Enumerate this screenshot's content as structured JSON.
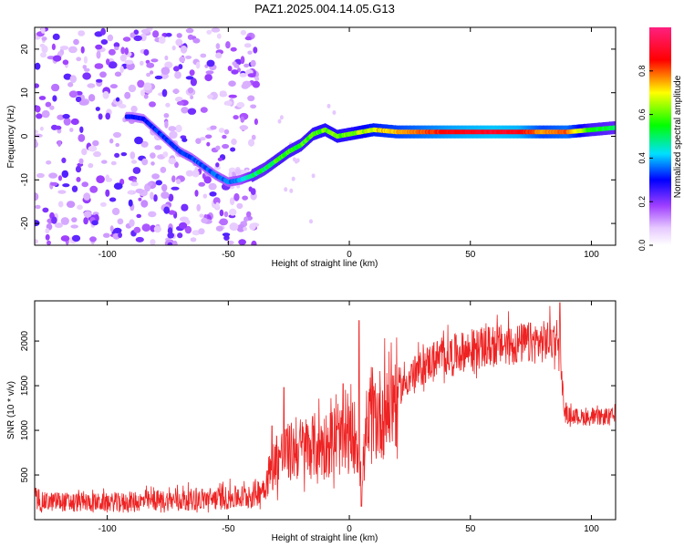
{
  "title": "PAZ1.2025.004.14.05.G13",
  "chart_data": [
    {
      "type": "heatmap",
      "xlabel": "Height of straight line (km)",
      "ylabel": "Frequency (Hz)",
      "xlim": [
        -130,
        110
      ],
      "ylim": [
        -25,
        25
      ],
      "xticks": [
        -100,
        -50,
        0,
        50,
        100
      ],
      "yticks": [
        -20,
        -10,
        0,
        10,
        20
      ],
      "colorbar": {
        "label": "Normalized spectral amplitude",
        "range": [
          0,
          1
        ],
        "ticks": [
          "0.0",
          "0.2",
          "0.4",
          "0.6",
          "0.8"
        ],
        "colors": [
          "#ffffff",
          "#e6c8ff",
          "#a040ff",
          "#0000ff",
          "#00e0ff",
          "#00ff00",
          "#ffff00",
          "#ff0000",
          "#ff2080"
        ]
      },
      "ridge": {
        "x": [
          -90,
          -85,
          -80,
          -75,
          -70,
          -65,
          -60,
          -55,
          -50,
          -45,
          -40,
          -35,
          -30,
          -25,
          -20,
          -15,
          -10,
          -5,
          0,
          5,
          10,
          20,
          30,
          40,
          50,
          60,
          70,
          80,
          90,
          100,
          110
        ],
        "y": [
          4.5,
          4.0,
          1.5,
          -1.0,
          -3.5,
          -5.0,
          -7.0,
          -9.0,
          -10.5,
          -10.0,
          -9.0,
          -7.5,
          -5.5,
          -3.5,
          -2.0,
          0.5,
          1.5,
          0.0,
          0.5,
          1.0,
          1.5,
          1.0,
          1.0,
          1.0,
          1.0,
          1.0,
          1.0,
          1.0,
          1.0,
          1.5,
          2.0
        ],
        "amplitude": [
          0.3,
          0.3,
          0.32,
          0.33,
          0.33,
          0.34,
          0.34,
          0.35,
          0.36,
          0.38,
          0.5,
          0.5,
          0.55,
          0.55,
          0.55,
          0.58,
          0.6,
          0.6,
          0.6,
          0.65,
          0.7,
          0.75,
          0.8,
          0.85,
          0.88,
          0.9,
          0.88,
          0.75,
          0.8,
          0.55,
          0.5
        ]
      }
    },
    {
      "type": "line",
      "xlabel": "Height of straight line (km)",
      "ylabel": "SNR (10 * v/v)",
      "xlim": [
        -130,
        110
      ],
      "ylim": [
        0,
        2450
      ],
      "xticks": [
        -100,
        -50,
        0,
        50,
        100
      ],
      "yticks": [
        500,
        1000,
        1500,
        2000
      ],
      "color": "#ee2222",
      "envelope": {
        "x": [
          -130,
          -120,
          -100,
          -80,
          -60,
          -45,
          -40,
          -35,
          -30,
          -20,
          -10,
          0,
          3,
          5,
          8,
          15,
          25,
          35,
          50,
          60,
          70,
          80,
          87,
          88,
          89,
          95,
          100,
          105,
          110
        ],
        "y": [
          200,
          200,
          190,
          210,
          230,
          250,
          270,
          380,
          700,
          800,
          850,
          900,
          950,
          500,
          1050,
          1250,
          1600,
          1800,
          1900,
          1950,
          1970,
          1990,
          2050,
          1500,
          1180,
          1150,
          1140,
          1150,
          1160
        ]
      },
      "spikes": [
        {
          "x": 4,
          "y": 2230
        },
        {
          "x": 5,
          "y": 150
        },
        {
          "x": 87,
          "y": 2430
        },
        {
          "x": -27,
          "y": 1480
        },
        {
          "x": -32,
          "y": 1050
        }
      ]
    }
  ]
}
